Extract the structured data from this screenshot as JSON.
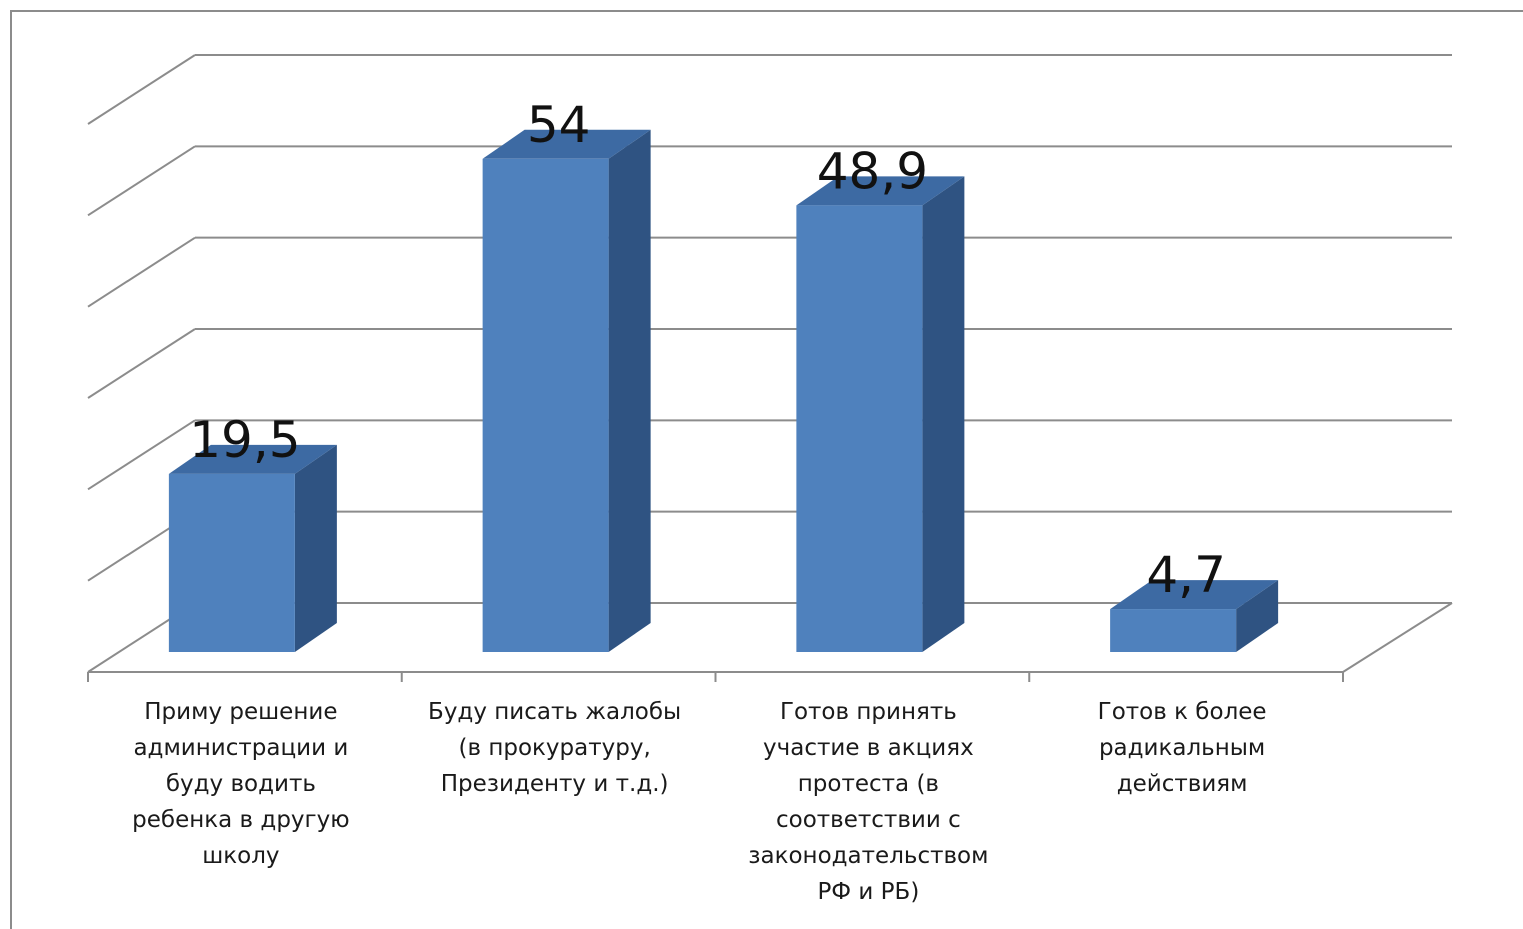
{
  "chart_data": {
    "type": "bar",
    "style": "3d-column",
    "categories": [
      "Приму решение администрации и буду водить ребенка в другую школу",
      "Буду писать жалобы (в прокуратуру, Президенту и т.д.)",
      "Готов принять участие в акциях протеста (в соответствии с законодательством РФ и РБ)",
      "Готов к более радикальным действиям"
    ],
    "category_lines": [
      [
        "Приму решение",
        "администрации и",
        "буду водить",
        "ребенка в другую",
        "школу"
      ],
      [
        "Буду писать жалобы",
        "(в прокуратуру,",
        "Президенту и т.д.)"
      ],
      [
        "Готов принять",
        "участие в акциях",
        "протеста (в",
        "соответствии с",
        "законодательством",
        "РФ и РБ)"
      ],
      [
        "Готов к более",
        "радикальным",
        "действиям"
      ]
    ],
    "values": [
      19.5,
      54,
      48.9,
      4.7
    ],
    "data_labels": [
      "19,5",
      "54",
      "48,9",
      "4,7"
    ],
    "ylim": [
      0,
      60
    ],
    "y_gridlines": [
      0,
      10,
      20,
      30,
      40,
      50,
      60
    ],
    "grid": true,
    "legend": "none",
    "colors": {
      "bar_front": "#4f81bd",
      "bar_top": "#3d6aa3",
      "bar_side": "#2f5382",
      "grid": "#8c8c8c",
      "frame": "#8c8c8c"
    }
  }
}
